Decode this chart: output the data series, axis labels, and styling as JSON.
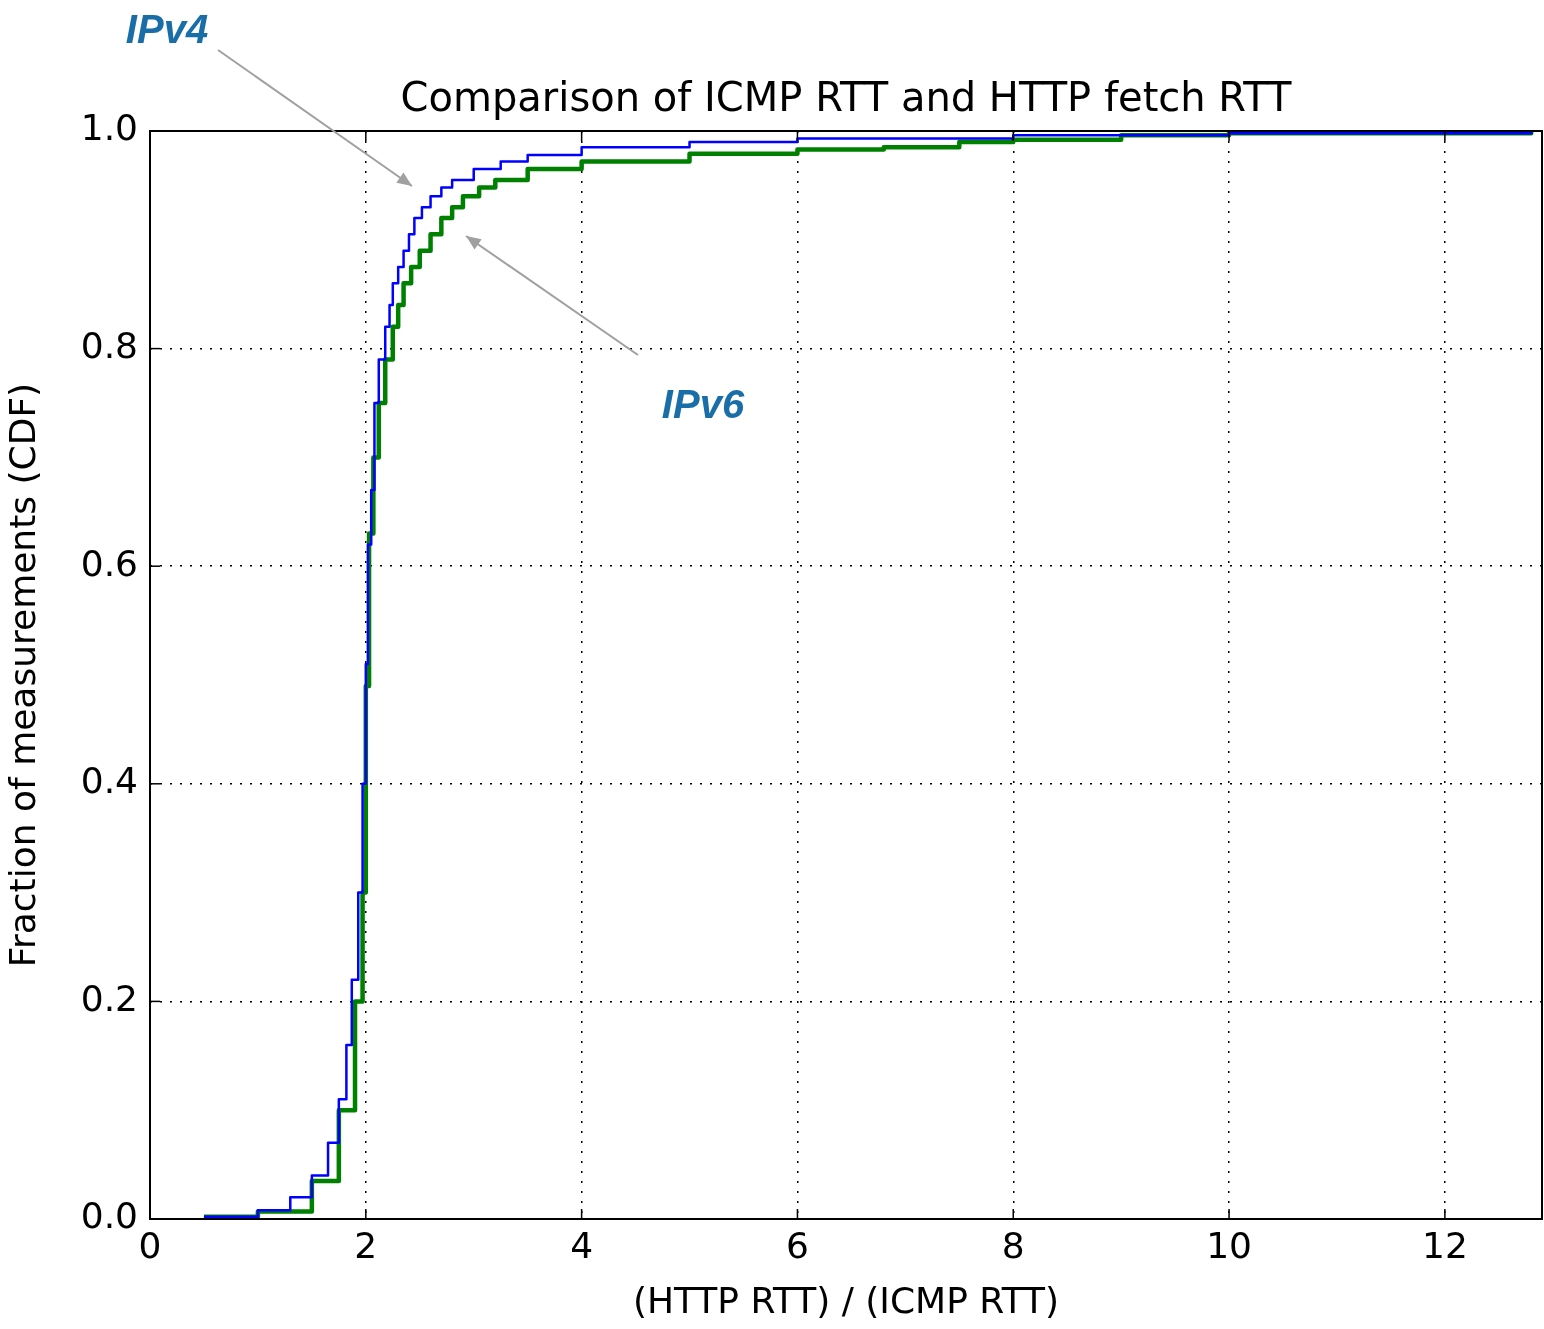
{
  "chart_data": {
    "type": "step",
    "title": "Comparison of ICMP RTT and HTTP fetch RTT",
    "xlabel": "(HTTP RTT) / (ICMP RTT)",
    "ylabel": "Fraction of measurements (CDF)",
    "xlim": [
      0,
      12.9
    ],
    "xticks": [
      0,
      2,
      4,
      6,
      8,
      10,
      12
    ],
    "ylim": [
      0,
      1.0
    ],
    "yticks": [
      {
        "value": 0,
        "label": "0.0"
      },
      {
        "value": 0.2,
        "label": "0.2"
      },
      {
        "value": 0.4,
        "label": "0.4"
      },
      {
        "value": 0.6,
        "label": "0.6"
      },
      {
        "value": 0.8,
        "label": "0.8"
      },
      {
        "value": 1.0,
        "label": "1.0"
      }
    ],
    "grid": true,
    "legend": false,
    "series": [
      {
        "color": "#0000ff",
        "x": [
          0.5,
          1.0,
          1.3,
          1.5,
          1.65,
          1.75,
          1.82,
          1.87,
          1.93,
          1.97,
          2.0,
          2.02,
          2.05,
          2.08,
          2.12,
          2.18,
          2.22,
          2.25,
          2.3,
          2.35,
          2.4,
          2.45,
          2.52,
          2.6,
          2.7,
          2.8,
          3.0,
          3.25,
          3.5,
          4.0,
          5.0,
          6.0,
          8.0,
          10.0,
          12.8
        ],
        "values": [
          0.002,
          0.008,
          0.02,
          0.04,
          0.07,
          0.11,
          0.16,
          0.22,
          0.3,
          0.4,
          0.51,
          0.62,
          0.67,
          0.75,
          0.79,
          0.82,
          0.84,
          0.86,
          0.875,
          0.89,
          0.905,
          0.92,
          0.93,
          0.94,
          0.948,
          0.955,
          0.965,
          0.972,
          0.978,
          0.985,
          0.99,
          0.993,
          0.996,
          0.998,
          0.999
        ]
      },
      {
        "color": "#008000",
        "x": [
          0.5,
          1.0,
          1.5,
          1.75,
          1.9,
          1.97,
          2.0,
          2.03,
          2.07,
          2.12,
          2.18,
          2.25,
          2.3,
          2.35,
          2.42,
          2.5,
          2.6,
          2.7,
          2.8,
          2.9,
          3.05,
          3.2,
          3.5,
          4.0,
          5.0,
          6.0,
          6.8,
          7.5,
          8.0,
          9.0,
          10.0,
          12.8
        ],
        "values": [
          0.002,
          0.007,
          0.035,
          0.1,
          0.2,
          0.3,
          0.49,
          0.63,
          0.7,
          0.75,
          0.79,
          0.82,
          0.84,
          0.86,
          0.875,
          0.89,
          0.905,
          0.92,
          0.93,
          0.94,
          0.948,
          0.955,
          0.965,
          0.972,
          0.979,
          0.983,
          0.985,
          0.99,
          0.992,
          0.996,
          0.998,
          0.999
        ]
      }
    ],
    "annotations": [
      "IPv4",
      "IPv6"
    ]
  }
}
